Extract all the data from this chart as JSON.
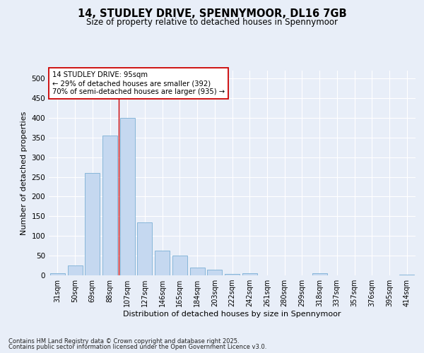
{
  "title": "14, STUDLEY DRIVE, SPENNYMOOR, DL16 7GB",
  "subtitle": "Size of property relative to detached houses in Spennymoor",
  "xlabel": "Distribution of detached houses by size in Spennymoor",
  "ylabel": "Number of detached properties",
  "categories": [
    "31sqm",
    "50sqm",
    "69sqm",
    "88sqm",
    "107sqm",
    "127sqm",
    "146sqm",
    "165sqm",
    "184sqm",
    "203sqm",
    "222sqm",
    "242sqm",
    "261sqm",
    "280sqm",
    "299sqm",
    "318sqm",
    "337sqm",
    "357sqm",
    "376sqm",
    "395sqm",
    "414sqm"
  ],
  "values": [
    5,
    25,
    260,
    355,
    400,
    135,
    62,
    50,
    20,
    15,
    3,
    5,
    0,
    0,
    0,
    5,
    0,
    0,
    0,
    0,
    2
  ],
  "bar_color": "#c5d8f0",
  "bar_edge_color": "#7aafd4",
  "property_line_color": "#cc0000",
  "property_line_x": 3.5,
  "annotation_text": "14 STUDLEY DRIVE: 95sqm\n← 29% of detached houses are smaller (392)\n70% of semi-detached houses are larger (935) →",
  "annotation_box_color": "#ffffff",
  "annotation_box_edge_color": "#cc0000",
  "ylim": [
    0,
    520
  ],
  "yticks": [
    0,
    50,
    100,
    150,
    200,
    250,
    300,
    350,
    400,
    450,
    500
  ],
  "footer_line1": "Contains HM Land Registry data © Crown copyright and database right 2025.",
  "footer_line2": "Contains public sector information licensed under the Open Government Licence v3.0.",
  "background_color": "#e8eef8",
  "plot_bg_color": "#e8eef8",
  "grid_color": "#ffffff"
}
